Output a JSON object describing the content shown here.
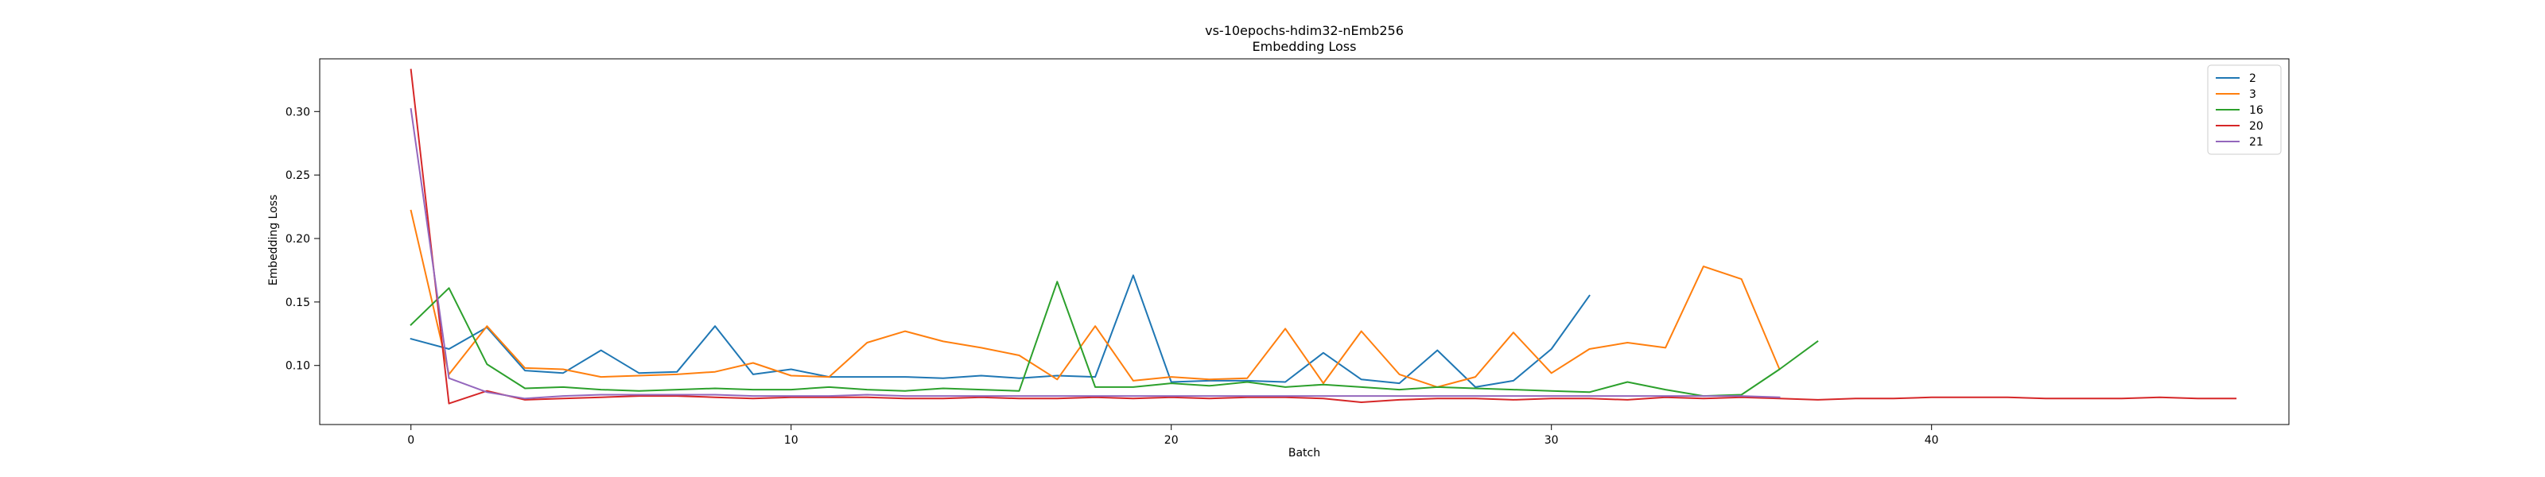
{
  "chart_data": {
    "type": "line",
    "title": "vs-10epochs-hdim32-nEmb256",
    "subtitle": "Embedding Loss",
    "xlabel": "Batch",
    "ylabel": "Embedding Loss",
    "xlim": [
      -2.4,
      49.4
    ],
    "ylim": [
      0.0535,
      0.3415
    ],
    "x_ticks": [
      0,
      10,
      20,
      30,
      40
    ],
    "y_ticks": [
      0.1,
      0.15,
      0.2,
      0.25,
      0.3
    ],
    "x_tick_labels": [
      "0",
      "10",
      "20",
      "30",
      "40"
    ],
    "y_tick_labels": [
      "0.10",
      "0.15",
      "0.20",
      "0.25",
      "0.30"
    ],
    "grid": false,
    "legend_position": "top-right",
    "series": [
      {
        "name": "2",
        "color": "#1f77b4",
        "values": [
          0.121,
          0.113,
          0.13,
          0.096,
          0.094,
          0.112,
          0.094,
          0.095,
          0.131,
          0.093,
          0.097,
          0.091,
          0.091,
          0.091,
          0.09,
          0.092,
          0.09,
          0.092,
          0.091,
          0.171,
          0.087,
          0.088,
          0.088,
          0.087,
          0.11,
          0.089,
          0.086,
          0.112,
          0.083,
          0.088,
          0.113,
          0.155
        ]
      },
      {
        "name": "3",
        "color": "#ff7f0e",
        "values": [
          0.222,
          0.093,
          0.131,
          0.098,
          0.097,
          0.091,
          0.092,
          0.093,
          0.095,
          0.102,
          0.092,
          0.091,
          0.118,
          0.127,
          0.119,
          0.114,
          0.108,
          0.089,
          0.131,
          0.088,
          0.091,
          0.089,
          0.09,
          0.129,
          0.086,
          0.127,
          0.093,
          0.083,
          0.091,
          0.126,
          0.094,
          0.113,
          0.118,
          0.114,
          0.178,
          0.168,
          0.097
        ]
      },
      {
        "name": "16",
        "color": "#2ca02c",
        "values": [
          0.132,
          0.161,
          0.101,
          0.082,
          0.083,
          0.081,
          0.08,
          0.081,
          0.082,
          0.081,
          0.081,
          0.083,
          0.081,
          0.08,
          0.082,
          0.081,
          0.08,
          0.166,
          0.083,
          0.083,
          0.086,
          0.084,
          0.087,
          0.083,
          0.085,
          0.083,
          0.081,
          0.083,
          0.082,
          0.081,
          0.08,
          0.079,
          0.087,
          0.081,
          0.076,
          0.077,
          0.097,
          0.119
        ]
      },
      {
        "name": "20",
        "color": "#d62728",
        "values": [
          0.333,
          0.07,
          0.08,
          0.073,
          0.074,
          0.075,
          0.076,
          0.076,
          0.075,
          0.074,
          0.075,
          0.075,
          0.075,
          0.074,
          0.074,
          0.075,
          0.074,
          0.074,
          0.075,
          0.074,
          0.075,
          0.074,
          0.075,
          0.075,
          0.074,
          0.071,
          0.073,
          0.074,
          0.074,
          0.073,
          0.074,
          0.074,
          0.073,
          0.075,
          0.074,
          0.075,
          0.074,
          0.073,
          0.074,
          0.074,
          0.075,
          0.075,
          0.075,
          0.074,
          0.074,
          0.074,
          0.075,
          0.074,
          0.074
        ]
      },
      {
        "name": "21",
        "color": "#9467bd",
        "values": [
          0.302,
          0.09,
          0.079,
          0.074,
          0.076,
          0.077,
          0.077,
          0.077,
          0.077,
          0.076,
          0.076,
          0.076,
          0.077,
          0.076,
          0.076,
          0.076,
          0.076,
          0.076,
          0.076,
          0.076,
          0.076,
          0.076,
          0.076,
          0.076,
          0.076,
          0.076,
          0.076,
          0.076,
          0.076,
          0.076,
          0.076,
          0.076,
          0.076,
          0.076,
          0.076,
          0.076,
          0.075
        ]
      }
    ]
  }
}
